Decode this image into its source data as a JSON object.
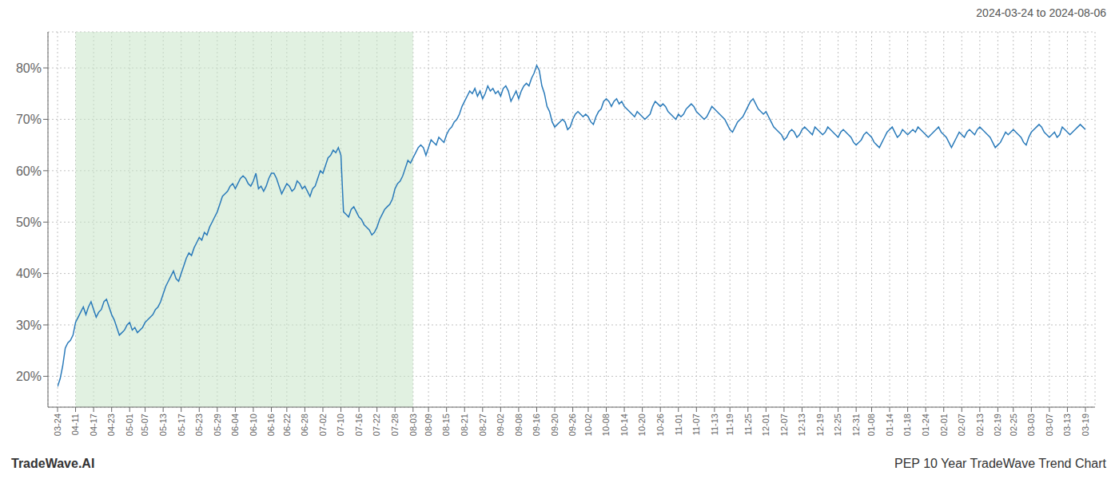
{
  "chart_data": {
    "type": "line",
    "title": "PEP 10 Year TradeWave Trend Chart",
    "subtitle": "2024-03-24 to 2024-08-06",
    "annotations": [
      "TradeWave.AI"
    ],
    "color": "#2b7bba",
    "grid": true,
    "ylim": [
      14,
      87
    ],
    "yticks": [
      {
        "value": 20,
        "label": "20%"
      },
      {
        "value": 30,
        "label": "30%"
      },
      {
        "value": 40,
        "label": "40%"
      },
      {
        "value": 50,
        "label": "50%"
      },
      {
        "value": 60,
        "label": "60%"
      },
      {
        "value": 70,
        "label": "70%"
      },
      {
        "value": 80,
        "label": "80%"
      }
    ],
    "shaded_range": {
      "from": "04-11",
      "to": "08-03",
      "color": "#c8e6c9"
    },
    "categories": [
      "03-24",
      null,
      null,
      null,
      null,
      null,
      null,
      "04-11",
      null,
      null,
      null,
      null,
      null,
      null,
      "04-17",
      null,
      null,
      null,
      null,
      null,
      null,
      "04-23",
      null,
      null,
      null,
      null,
      null,
      null,
      "05-01",
      null,
      null,
      null,
      null,
      null,
      "05-07",
      null,
      null,
      null,
      null,
      null,
      null,
      "05-13",
      null,
      null,
      null,
      null,
      null,
      null,
      "05-17",
      null,
      null,
      null,
      null,
      null,
      null,
      "05-23",
      null,
      null,
      null,
      null,
      null,
      null,
      "05-29",
      null,
      null,
      null,
      null,
      null,
      null,
      "06-04",
      null,
      null,
      null,
      null,
      null,
      null,
      "06-10",
      null,
      null,
      null,
      null,
      null,
      null,
      "06-16",
      null,
      null,
      null,
      null,
      null,
      "06-22",
      null,
      null,
      null,
      null,
      null,
      null,
      "06-28",
      null,
      null,
      null,
      null,
      null,
      null,
      "07-02",
      null,
      null,
      null,
      null,
      null,
      null,
      "07-10",
      null,
      null,
      null,
      null,
      null,
      null,
      "07-16",
      null,
      null,
      null,
      null,
      null,
      null,
      "07-22",
      null,
      null,
      null,
      null,
      null,
      null,
      "07-28",
      null,
      null,
      null,
      null,
      null,
      null,
      "08-03",
      null,
      null,
      null,
      null,
      null,
      "08-09",
      null,
      null,
      null,
      null,
      null,
      null,
      "08-15",
      null,
      null,
      null,
      null,
      null,
      null,
      "08-21",
      null,
      null,
      null,
      null,
      null,
      null,
      "08-27",
      null,
      null,
      null,
      null,
      null,
      null,
      "09-02",
      null,
      null,
      null,
      null,
      null,
      null,
      "09-08",
      null,
      null,
      null,
      null,
      null,
      null,
      "09-16",
      null,
      null,
      null,
      null,
      null,
      null,
      "09-20",
      null,
      null,
      null,
      null,
      null,
      null,
      "09-26",
      null,
      null,
      null,
      null,
      null,
      "10-02",
      null,
      null,
      null,
      null,
      null,
      null,
      "10-08",
      null,
      null,
      null,
      null,
      null,
      null,
      "10-14",
      null,
      null,
      null,
      null,
      null,
      null,
      "10-20",
      null,
      null,
      null,
      null,
      null,
      null,
      "10-26",
      null,
      null,
      null,
      null,
      null,
      null,
      "11-01",
      null,
      null,
      null,
      null,
      null,
      null,
      "11-07",
      null,
      null,
      null,
      null,
      null,
      null,
      "11-13",
      null,
      null,
      null,
      null,
      null,
      "11-19",
      null,
      null,
      null,
      null,
      null,
      null,
      "11-25",
      null,
      null,
      null,
      null,
      null,
      null,
      "12-01",
      null,
      null,
      null,
      null,
      null,
      null,
      "12-07",
      null,
      null,
      null,
      null,
      null,
      null,
      "12-13",
      null,
      null,
      null,
      null,
      null,
      null,
      "12-19",
      null,
      null,
      null,
      null,
      null,
      null,
      "12-25",
      null,
      null,
      null,
      null,
      null,
      null,
      "12-31",
      null,
      null,
      null,
      null,
      null,
      "01-08",
      null,
      null,
      null,
      null,
      null,
      null,
      "01-14",
      null,
      null,
      null,
      null,
      null,
      null,
      "01-18",
      null,
      null,
      null,
      null,
      null,
      null,
      "01-24",
      null,
      null,
      null,
      null,
      null,
      null,
      "02-01",
      null,
      null,
      null,
      null,
      null,
      null,
      "02-07",
      null,
      null,
      null,
      null,
      null,
      null,
      "02-13",
      null,
      null,
      null,
      null,
      null,
      null,
      "02-19",
      null,
      null,
      null,
      null,
      null,
      "02-25",
      null,
      null,
      null,
      null,
      null,
      null,
      "03-03",
      null,
      null,
      null,
      null,
      null,
      null,
      "03-07",
      null,
      null,
      null,
      null,
      null,
      null,
      "03-13",
      null,
      null,
      null,
      null,
      null,
      null,
      "03-19"
    ],
    "values": [
      18.0,
      19.5,
      22.0,
      25.5,
      26.5,
      27.0,
      28.0,
      30.5,
      31.5,
      32.5,
      33.5,
      32.0,
      33.5,
      34.5,
      33.0,
      31.5,
      32.5,
      33.0,
      34.5,
      35.0,
      33.5,
      32.0,
      31.0,
      29.5,
      28.0,
      28.5,
      29.0,
      30.0,
      30.5,
      29.0,
      29.5,
      28.5,
      29.0,
      29.5,
      30.5,
      31.0,
      31.5,
      32.0,
      33.0,
      33.5,
      34.5,
      36.0,
      37.5,
      38.5,
      39.5,
      40.5,
      39.0,
      38.5,
      40.0,
      41.5,
      43.0,
      44.0,
      43.5,
      45.0,
      46.0,
      47.0,
      46.5,
      48.0,
      47.5,
      49.0,
      50.0,
      51.0,
      52.0,
      53.5,
      55.0,
      55.5,
      56.0,
      57.0,
      57.5,
      56.5,
      57.5,
      58.5,
      59.0,
      58.5,
      57.5,
      57.0,
      58.0,
      59.5,
      56.5,
      57.0,
      56.0,
      57.0,
      58.5,
      59.5,
      59.5,
      58.5,
      57.0,
      55.5,
      56.5,
      57.5,
      57.0,
      56.0,
      56.5,
      58.0,
      57.5,
      56.5,
      57.0,
      56.0,
      55.0,
      56.5,
      57.0,
      58.5,
      60.0,
      59.5,
      61.0,
      62.5,
      63.0,
      64.0,
      63.5,
      64.5,
      63.0,
      52.0,
      51.5,
      51.0,
      52.5,
      53.0,
      52.0,
      51.0,
      50.5,
      49.5,
      49.0,
      48.5,
      47.5,
      48.0,
      49.0,
      50.5,
      51.5,
      52.5,
      53.0,
      53.5,
      54.5,
      56.5,
      57.5,
      58.0,
      59.0,
      60.5,
      62.0,
      61.5,
      62.5,
      63.5,
      64.5,
      65.0,
      64.5,
      63.0,
      64.5,
      66.0,
      65.5,
      65.0,
      66.5,
      66.0,
      65.5,
      67.0,
      68.0,
      68.5,
      69.5,
      70.0,
      71.0,
      72.5,
      73.5,
      74.5,
      75.5,
      75.0,
      76.0,
      74.5,
      75.5,
      74.0,
      75.0,
      76.5,
      75.5,
      76.0,
      75.0,
      75.5,
      74.5,
      76.0,
      76.5,
      75.5,
      73.5,
      74.5,
      75.5,
      74.0,
      75.5,
      76.5,
      77.0,
      76.5,
      78.0,
      79.0,
      80.5,
      79.5,
      76.5,
      75.0,
      72.5,
      71.5,
      69.5,
      68.5,
      69.0,
      69.5,
      70.0,
      69.5,
      68.0,
      68.5,
      70.0,
      71.0,
      71.5,
      71.0,
      70.5,
      71.0,
      70.5,
      69.5,
      69.0,
      70.5,
      71.5,
      72.0,
      73.5,
      74.0,
      73.5,
      72.5,
      73.5,
      74.0,
      73.0,
      73.5,
      72.5,
      72.0,
      71.5,
      71.0,
      70.5,
      71.5,
      71.0,
      70.5,
      70.0,
      70.5,
      71.0,
      72.5,
      73.5,
      73.0,
      72.5,
      73.0,
      72.5,
      71.5,
      71.0,
      70.5,
      70.0,
      71.0,
      70.5,
      71.0,
      72.0,
      72.5,
      73.0,
      72.5,
      71.5,
      71.0,
      70.5,
      70.0,
      70.5,
      71.5,
      72.5,
      72.0,
      71.5,
      71.0,
      70.5,
      70.0,
      69.0,
      68.0,
      67.5,
      68.5,
      69.5,
      70.0,
      70.5,
      71.5,
      72.5,
      73.5,
      74.0,
      73.0,
      72.0,
      71.5,
      71.0,
      71.5,
      70.5,
      69.5,
      68.5,
      68.0,
      67.5,
      67.0,
      66.0,
      66.5,
      67.5,
      68.0,
      67.5,
      66.5,
      67.0,
      68.0,
      68.5,
      68.0,
      67.5,
      67.0,
      68.5,
      68.0,
      67.5,
      67.0,
      67.5,
      68.5,
      68.0,
      67.5,
      67.0,
      66.5,
      67.5,
      68.0,
      67.5,
      67.0,
      66.5,
      65.5,
      65.0,
      65.5,
      66.0,
      67.0,
      67.5,
      67.0,
      66.5,
      65.5,
      65.0,
      64.5,
      65.5,
      66.5,
      67.5,
      68.0,
      68.5,
      67.5,
      66.5,
      67.0,
      68.0,
      67.5,
      67.0,
      67.5,
      68.0,
      67.5,
      68.5,
      68.0,
      67.5,
      67.0,
      66.5,
      67.0,
      67.5,
      68.0,
      68.5,
      67.5,
      67.0,
      66.5,
      65.5,
      64.5,
      65.5,
      66.5,
      67.5,
      67.0,
      66.5,
      67.5,
      68.0,
      67.5,
      67.0,
      68.0,
      68.5,
      68.0,
      67.5,
      67.0,
      66.5,
      65.5,
      64.5,
      65.0,
      65.5,
      66.5,
      67.5,
      67.0,
      67.5,
      68.0,
      67.5,
      67.0,
      66.5,
      65.5,
      65.0,
      66.5,
      67.5,
      68.0,
      68.5,
      69.0,
      68.5,
      67.5,
      67.0,
      66.5,
      67.0,
      67.5,
      66.5,
      67.0,
      68.5,
      68.0,
      67.5,
      67.0,
      67.5,
      68.0,
      68.5,
      69.0,
      68.5,
      68.0
    ]
  }
}
